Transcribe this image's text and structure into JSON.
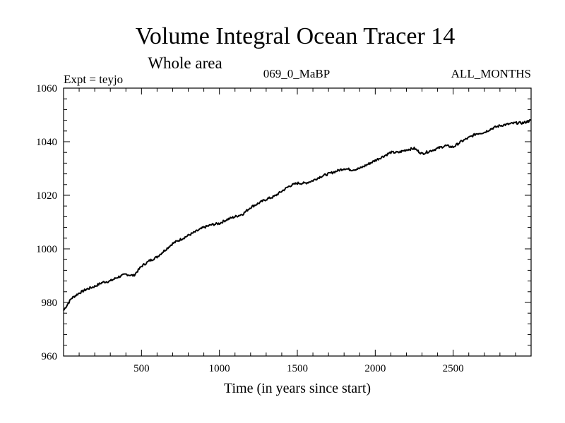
{
  "chart_data": {
    "type": "line",
    "title": "Volume Integral Ocean Tracer 14",
    "subtitle": "Whole area",
    "annotations": {
      "left": "Expt = teyjo",
      "center": "069_0_MaBP",
      "right": "ALL_MONTHS"
    },
    "xlabel": "Time (in years since start)",
    "ylabel": "",
    "xlim": [
      0,
      3000
    ],
    "ylim": [
      960,
      1060
    ],
    "xticks": [
      500,
      1000,
      1500,
      2000,
      2500
    ],
    "yticks": [
      960,
      980,
      1000,
      1020,
      1040,
      1060
    ],
    "grid": false,
    "line_color": "#000000",
    "series": [
      {
        "x": [
          0,
          50,
          100,
          150,
          200,
          250,
          300,
          350,
          400,
          450,
          500,
          550,
          600,
          650,
          700,
          750,
          800,
          850,
          900,
          950,
          1000,
          1050,
          1100,
          1150,
          1200,
          1250,
          1300,
          1350,
          1400,
          1450,
          1500,
          1550,
          1600,
          1650,
          1700,
          1750,
          1800,
          1850,
          1900,
          1950,
          2000,
          2050,
          2100,
          2150,
          2200,
          2250,
          2300,
          2350,
          2400,
          2450,
          2500,
          2550,
          2600,
          2650,
          2700,
          2750,
          2800,
          2850,
          2900,
          2950,
          3000
        ],
        "y": [
          977.0,
          981.5,
          983.5,
          985.0,
          986.0,
          987.5,
          988.0,
          989.5,
          990.5,
          990.0,
          993.5,
          995.5,
          997.0,
          999.5,
          1002.0,
          1003.5,
          1005.0,
          1006.5,
          1008.0,
          1009.0,
          1009.5,
          1011.0,
          1012.0,
          1013.0,
          1015.5,
          1017.0,
          1018.5,
          1019.5,
          1021.5,
          1023.5,
          1024.5,
          1024.5,
          1025.5,
          1027.0,
          1028.0,
          1029.0,
          1030.0,
          1029.5,
          1030.0,
          1031.5,
          1033.0,
          1034.5,
          1036.0,
          1036.0,
          1037.0,
          1037.5,
          1035.5,
          1036.5,
          1037.5,
          1038.5,
          1038.0,
          1040.0,
          1041.5,
          1043.0,
          1043.5,
          1045.0,
          1046.0,
          1046.5,
          1047.0,
          1047.0,
          1048.0
        ]
      }
    ]
  }
}
